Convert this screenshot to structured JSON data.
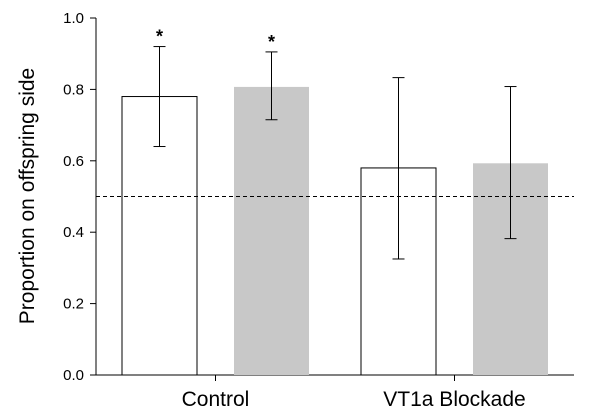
{
  "chart_data": {
    "type": "bar",
    "categories": [
      "Control",
      "VT1a Blockade"
    ],
    "series": [
      {
        "values": [
          0.78,
          0.58
        ],
        "error_low": [
          0.64,
          0.325
        ],
        "error_high": [
          0.92,
          0.833
        ],
        "significance": [
          "*",
          ""
        ],
        "fill": "#ffffff",
        "stroke": "#000000"
      },
      {
        "values": [
          0.807,
          0.593
        ],
        "error_low": [
          0.715,
          0.382
        ],
        "error_high": [
          0.905,
          0.808
        ],
        "significance": [
          "*",
          ""
        ],
        "fill": "#c8c8c8",
        "stroke": "none"
      }
    ],
    "title": "",
    "xlabel": "",
    "ylabel": "Proportion on offspring side",
    "ylim": [
      0,
      1.0
    ],
    "yticks": [
      "0.0",
      "0.2",
      "0.4",
      "0.6",
      "0.8",
      "1.0"
    ],
    "reference_line": {
      "y": 0.5,
      "style": "dashed"
    },
    "grid": false,
    "legend": "none"
  }
}
